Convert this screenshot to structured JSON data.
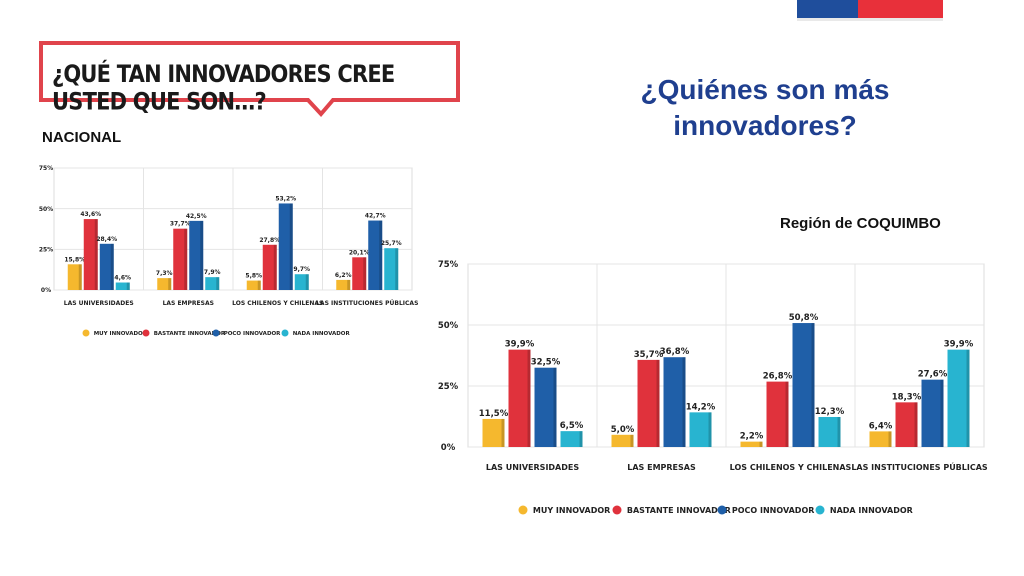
{
  "slide": {
    "question": "¿QUÉ TAN INNOVADORES CREE USTED QUE SON…?",
    "title": "¿Quiénes son más innovadores?",
    "nacional_label": "NACIONAL",
    "region_label": "Región de COQUIMBO"
  },
  "colors": {
    "muy": "#f5b82e",
    "bastante": "#e0323c",
    "poco": "#1f5fa8",
    "nada": "#28b4d0",
    "title": "#1f3f8f",
    "bubble_border": "#e0444c"
  },
  "chart_data": [
    {
      "id": "nacional",
      "type": "bar",
      "categories": [
        "LAS UNIVERSIDADES",
        "LAS EMPRESAS",
        "LOS CHILENOS Y CHILENAS",
        "LAS INSTITUCIONES PÚBLICAS"
      ],
      "series": [
        {
          "name": "MUY INNOVADOR",
          "values": [
            15.8,
            7.3,
            5.8,
            6.2
          ],
          "labels": [
            "15,8%",
            "7,3%",
            "5,8%",
            "6,2%"
          ]
        },
        {
          "name": "BASTANTE INNOVADOR",
          "values": [
            43.6,
            37.7,
            27.8,
            20.1
          ],
          "labels": [
            "43,6%",
            "37,7%",
            "27,8%",
            "20,1%"
          ]
        },
        {
          "name": "POCO INNOVADOR",
          "values": [
            28.4,
            42.5,
            53.2,
            42.7
          ],
          "labels": [
            "28,4%",
            "42,5%",
            "53,2%",
            "42,7%"
          ]
        },
        {
          "name": "NADA INNOVADOR",
          "values": [
            4.6,
            7.9,
            9.7,
            25.7
          ],
          "labels": [
            "4,6%",
            "7,9%",
            "9,7%",
            "25,7%"
          ]
        }
      ],
      "yticks": [
        "0%",
        "25%",
        "50%",
        "75%"
      ],
      "ylim": [
        0,
        75
      ],
      "grid": true,
      "legend": "bottom"
    },
    {
      "id": "coquimbo",
      "type": "bar",
      "categories": [
        "LAS UNIVERSIDADES",
        "LAS EMPRESAS",
        "LOS CHILENOS Y CHILENAS",
        "LAS INSTITUCIONES PÚBLICAS"
      ],
      "series": [
        {
          "name": "MUY INNOVADOR",
          "values": [
            11.5,
            5.0,
            2.2,
            6.4
          ],
          "labels": [
            "11,5%",
            "5,0%",
            "2,2%",
            "6,4%"
          ]
        },
        {
          "name": "BASTANTE INNOVADOR",
          "values": [
            39.9,
            35.7,
            26.8,
            18.3
          ],
          "labels": [
            "39,9%",
            "35,7%",
            "26,8%",
            "18,3%"
          ]
        },
        {
          "name": "POCO INNOVADOR",
          "values": [
            32.5,
            36.8,
            50.8,
            27.6
          ],
          "labels": [
            "32,5%",
            "36,8%",
            "50,8%",
            "27,6%"
          ]
        },
        {
          "name": "NADA INNOVADOR",
          "values": [
            6.5,
            14.2,
            12.3,
            39.9
          ],
          "labels": [
            "6,5%",
            "14,2%",
            "12,3%",
            "39,9%"
          ]
        }
      ],
      "yticks": [
        "0%",
        "25%",
        "50%",
        "75%"
      ],
      "ylim": [
        0,
        75
      ],
      "grid": true,
      "legend": "bottom"
    }
  ]
}
